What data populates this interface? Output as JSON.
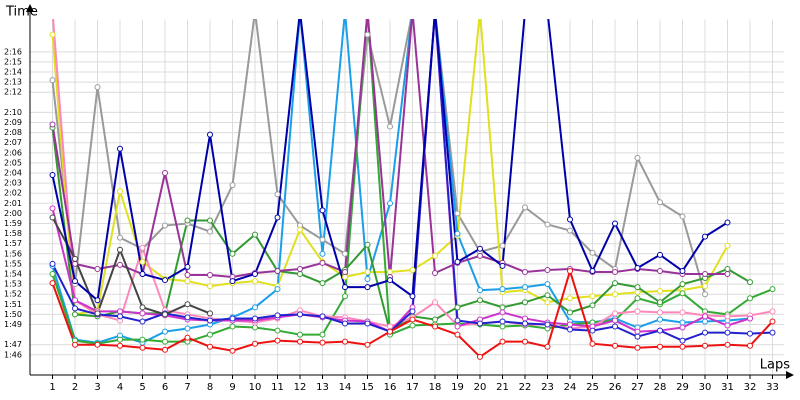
{
  "chart_data": {
    "type": "line",
    "x_label": "Laps",
    "y_label": "Time",
    "x": [
      1,
      2,
      3,
      4,
      5,
      6,
      7,
      8,
      9,
      10,
      11,
      12,
      13,
      14,
      15,
      16,
      17,
      18,
      19,
      20,
      21,
      22,
      23,
      24,
      25,
      26,
      27,
      28,
      29,
      30,
      31,
      32,
      33
    ],
    "xlim": [
      0,
      33.5
    ],
    "xticks": [
      1,
      2,
      3,
      4,
      5,
      6,
      7,
      8,
      9,
      10,
      11,
      12,
      13,
      14,
      15,
      16,
      17,
      18,
      19,
      20,
      21,
      22,
      23,
      24,
      25,
      26,
      27,
      28,
      29,
      30,
      31,
      32,
      33
    ],
    "ylim": [
      104,
      139.2
    ],
    "yticks": [
      {
        "value": 106,
        "label": "1:46"
      },
      {
        "value": 107,
        "label": "1:47"
      },
      {
        "value": 109,
        "label": "1:49"
      },
      {
        "value": 110,
        "label": "1:50"
      },
      {
        "value": 111,
        "label": "1:51"
      },
      {
        "value": 112,
        "label": "1:52"
      },
      {
        "value": 113,
        "label": "1:53"
      },
      {
        "value": 114,
        "label": "1:54"
      },
      {
        "value": 115,
        "label": "1:55"
      },
      {
        "value": 116,
        "label": "1:56"
      },
      {
        "value": 117,
        "label": "1:57"
      },
      {
        "value": 118,
        "label": "1:58"
      },
      {
        "value": 119,
        "label": "1:59"
      },
      {
        "value": 120,
        "label": "2:00"
      },
      {
        "value": 121,
        "label": "2:01"
      },
      {
        "value": 122,
        "label": "2:02"
      },
      {
        "value": 123,
        "label": "2:03"
      },
      {
        "value": 124,
        "label": "2:04"
      },
      {
        "value": 125,
        "label": "2:05"
      },
      {
        "value": 126,
        "label": "2:06"
      },
      {
        "value": 127,
        "label": "2:07"
      },
      {
        "value": 128,
        "label": "2:08"
      },
      {
        "value": 129,
        "label": "2:09"
      },
      {
        "value": 130,
        "label": "2:10"
      },
      {
        "value": 132,
        "label": "2:12"
      },
      {
        "value": 133,
        "label": "2:13"
      },
      {
        "value": 134,
        "label": "2:14"
      },
      {
        "value": 135,
        "label": "2:15"
      },
      {
        "value": 136,
        "label": "2:16"
      }
    ],
    "grid": true,
    "series": [
      {
        "color": "#9a9a9a",
        "values": [
          133.2,
          113,
          132.5,
          117.6,
          116.5,
          118.8,
          119,
          118.2,
          122.8,
          140,
          121.9,
          118.8,
          117.4,
          116,
          137.7,
          128.6,
          140,
          140,
          120,
          116.2,
          116.8,
          120.6,
          118.9,
          118.3,
          116.1,
          114.5,
          125.5,
          121.1,
          119.7,
          112,
          null,
          null,
          null
        ]
      },
      {
        "color": "#e0e020",
        "values": [
          137.7,
          110,
          110.4,
          122.2,
          115.2,
          113.5,
          113.3,
          112.8,
          113.1,
          113.3,
          112.8,
          118.4,
          115.2,
          113.7,
          114.2,
          114.2,
          114.4,
          115.8,
          117.8,
          140,
          112.2,
          112.4,
          111.2,
          111.6,
          111.8,
          112,
          112.2,
          112.3,
          112.4,
          112.8,
          116.8,
          null,
          null
        ]
      },
      {
        "color": "#1a9fe8",
        "values": [
          114.8,
          107.5,
          107.2,
          107.9,
          107.2,
          108.3,
          108.6,
          109,
          109.7,
          110.7,
          112.5,
          140,
          116,
          140,
          113.5,
          121,
          140,
          140,
          118,
          112.4,
          112.5,
          112.7,
          113,
          109.3,
          109.2,
          109.6,
          108.7,
          109.5,
          109.2,
          109.3,
          109.4,
          109.6,
          null
        ]
      },
      {
        "color": "#33aa33",
        "values": [
          114,
          107.4,
          107.1,
          107.5,
          107.5,
          107.3,
          107.3,
          108,
          108.8,
          108.7,
          108.4,
          108,
          108,
          111.8,
          140,
          108,
          108.9,
          109,
          109.1,
          109,
          108.8,
          108.9,
          108.6,
          109,
          109.2,
          109.4,
          111.6,
          111,
          112.1,
          110.3,
          110,
          111.6,
          112.5
        ]
      },
      {
        "color": "#339933",
        "values": [
          128.5,
          110,
          109.8,
          110.3,
          110.1,
          110.1,
          119.3,
          119.3,
          116,
          117.9,
          114.3,
          114,
          113.1,
          114.4,
          116.9,
          108.3,
          109.8,
          109.5,
          110.7,
          111.4,
          110.7,
          111.2,
          111.9,
          110.2,
          110.9,
          113.1,
          112.7,
          111.2,
          113,
          113.6,
          114.5,
          113.2,
          null
        ]
      },
      {
        "color": "#ff88bb",
        "values": [
          140,
          111.4,
          110,
          109.4,
          116.6,
          110.4,
          110,
          109.6,
          109.4,
          109.2,
          109.6,
          110.4,
          109.8,
          109.7,
          109.3,
          108.8,
          109.7,
          111.2,
          108.9,
          109.1,
          109.3,
          109,
          109,
          108.6,
          108.8,
          110.1,
          110.3,
          110.2,
          110.2,
          109.9,
          109.8,
          109.9,
          110.3
        ]
      },
      {
        "color": "#cc33cc",
        "values": [
          120.5,
          111.4,
          110.3,
          110.3,
          110.1,
          109.9,
          109.5,
          109.4,
          109.4,
          109.4,
          109.7,
          110,
          109.7,
          109.4,
          109.3,
          108.3,
          110.7,
          140,
          108.8,
          109.5,
          110.2,
          109.6,
          109.2,
          109,
          108.8,
          109.4,
          108.3,
          108.4,
          108.7,
          109.8,
          108.9,
          109.6,
          null
        ]
      },
      {
        "color": "#2222cc",
        "values": [
          115,
          110.6,
          110,
          109.8,
          109.3,
          110.1,
          109.7,
          109.4,
          109.6,
          109.6,
          109.9,
          110,
          109.8,
          109.1,
          109.1,
          108.3,
          110.3,
          140,
          109.4,
          109.1,
          109.3,
          109.1,
          109,
          108.5,
          108.4,
          108.8,
          107.8,
          108.4,
          107.4,
          108.2,
          108.2,
          108.1,
          108.2
        ]
      },
      {
        "color": "#993399",
        "values": [
          128.8,
          115,
          114.5,
          114.9,
          114,
          124,
          113.9,
          113.9,
          113.7,
          114.1,
          114.3,
          114.5,
          115.1,
          114.2,
          140,
          113.7,
          140,
          114.1,
          115.1,
          115.8,
          115.1,
          114.2,
          114.4,
          114.5,
          114.2,
          114.2,
          114.5,
          114.3,
          114,
          114,
          114,
          null,
          null
        ]
      },
      {
        "color": "#444444",
        "values": [
          119.6,
          115.5,
          110.1,
          116.4,
          110.7,
          110,
          111,
          110.1,
          null,
          null,
          null,
          null,
          null,
          null,
          null,
          null,
          null,
          null,
          null,
          null,
          null,
          null,
          null,
          null,
          null,
          null,
          null,
          null,
          null,
          null,
          null,
          null,
          null
        ]
      },
      {
        "color": "#0000aa",
        "values": [
          123.8,
          113.3,
          111.4,
          126.4,
          114,
          113.4,
          114.7,
          127.8,
          113.3,
          114,
          119.6,
          140,
          120.3,
          112.7,
          112.7,
          113.4,
          111.8,
          140,
          115.2,
          116.5,
          114.8,
          140,
          140,
          119.4,
          114.3,
          119,
          114.6,
          115.9,
          114.3,
          117.7,
          119.1,
          null,
          null
        ]
      },
      {
        "color": "#ee1111",
        "values": [
          113.1,
          107,
          107,
          106.9,
          106.7,
          106.5,
          107.7,
          106.8,
          106.4,
          107.1,
          107.4,
          107.3,
          107.2,
          107.3,
          107,
          108.3,
          109.5,
          108.8,
          108,
          105.8,
          107.3,
          107.3,
          106.8,
          114.3,
          107.1,
          106.9,
          106.7,
          106.8,
          106.8,
          106.9,
          107,
          106.9,
          109.3
        ]
      }
    ]
  }
}
